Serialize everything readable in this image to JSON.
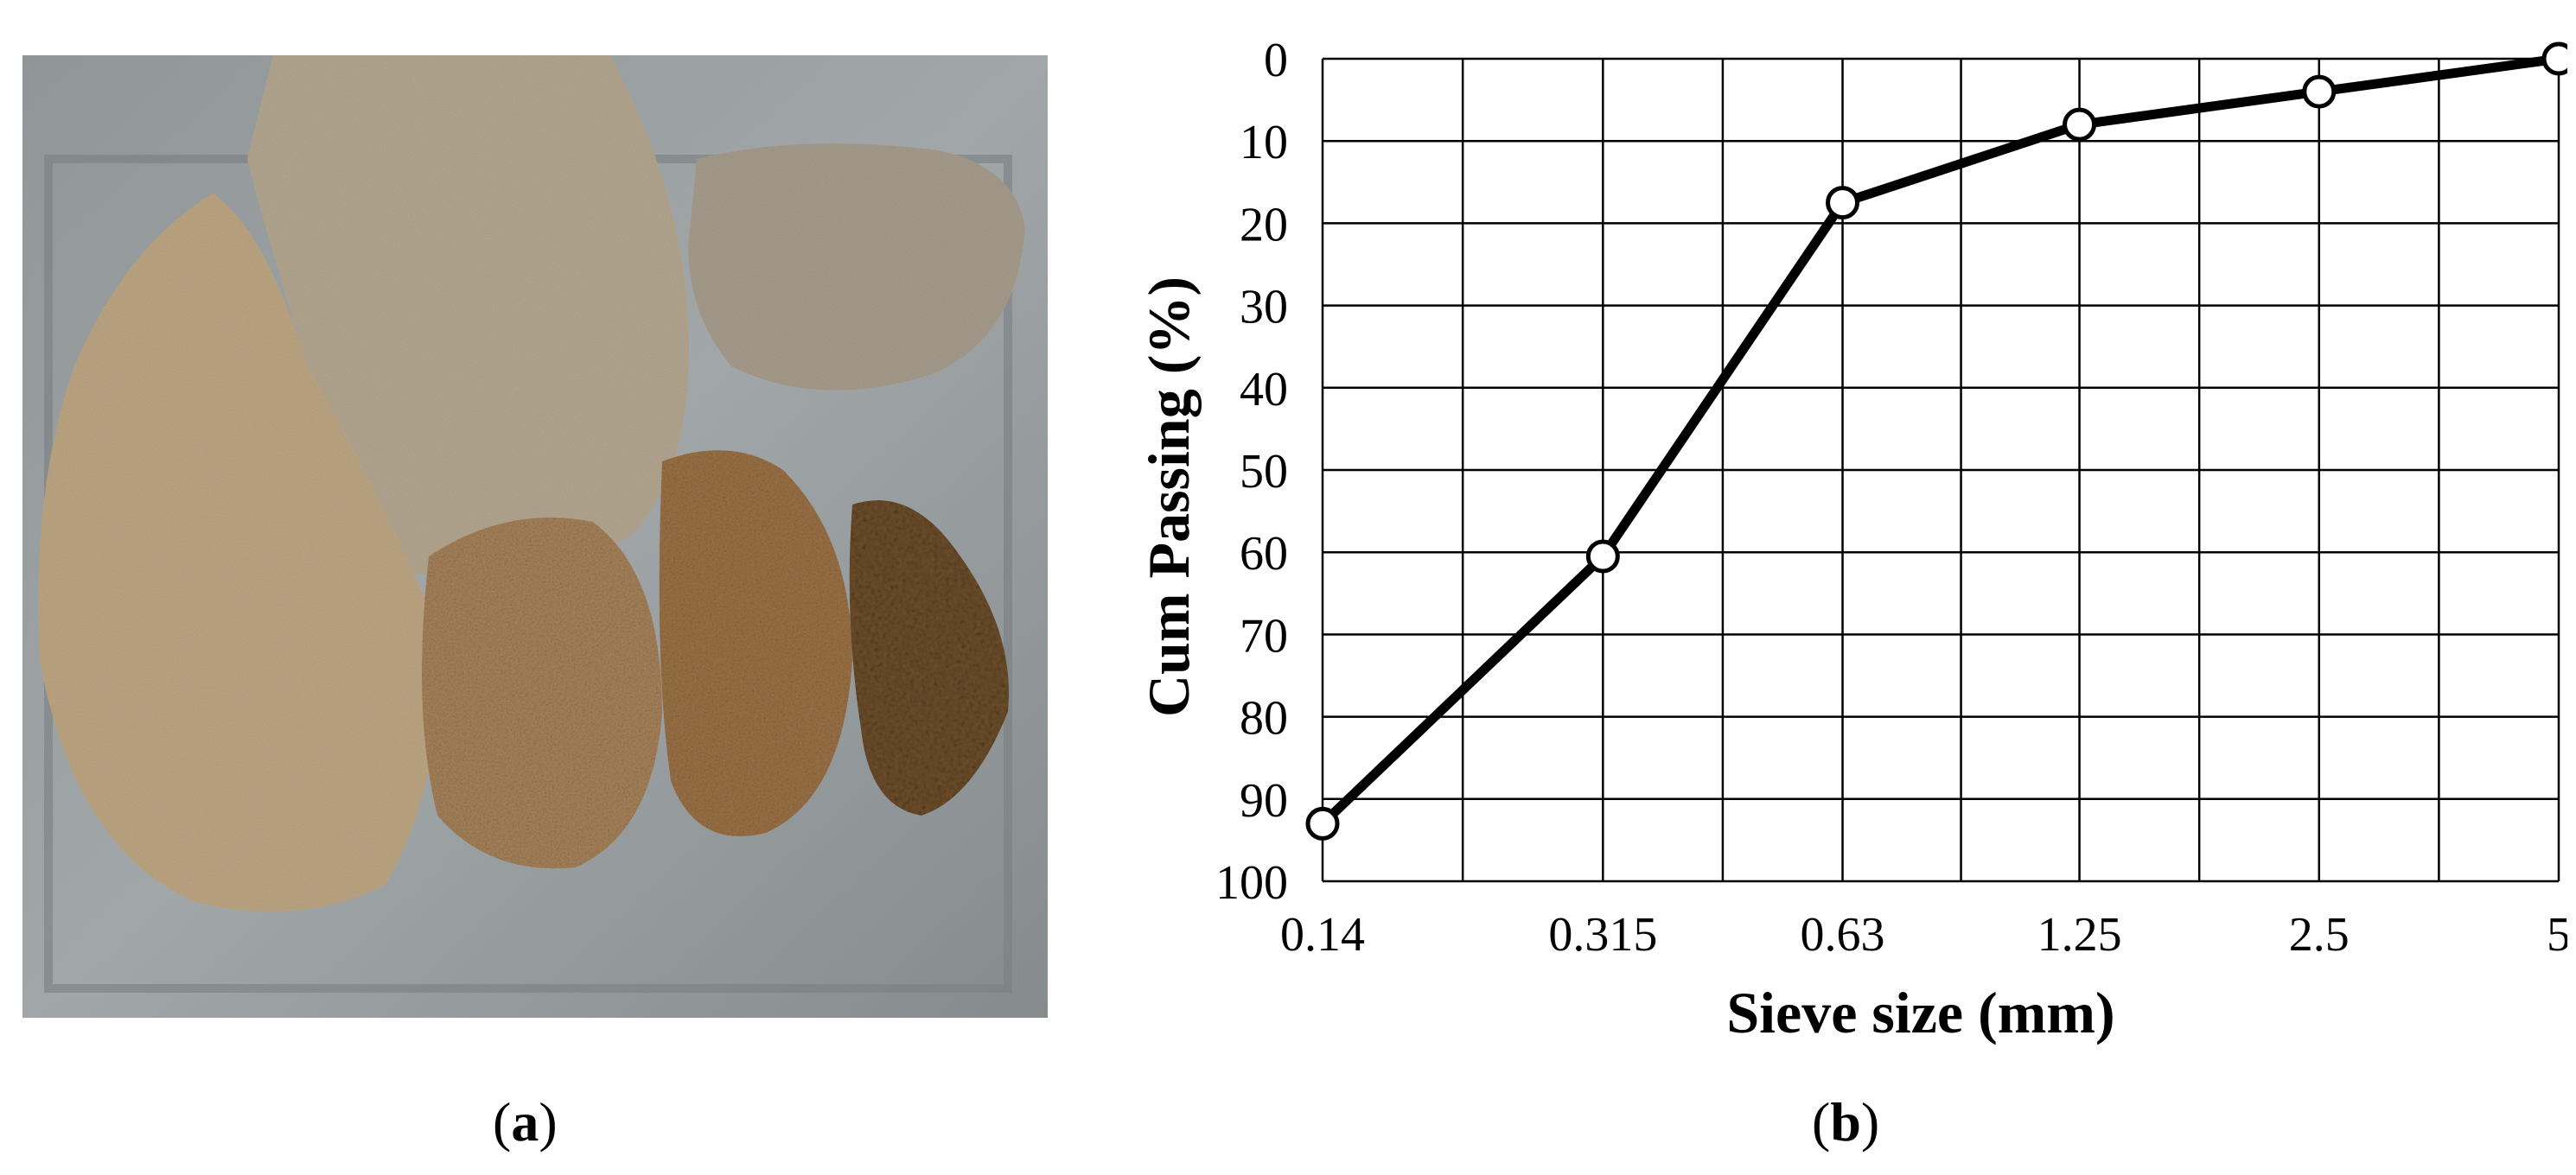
{
  "figure": {
    "panel_a_label": "a",
    "panel_b_label": "b"
  },
  "photo": {
    "description_name": "sand-fractions-in-tray-photo"
  },
  "chart_data": {
    "type": "line",
    "title": "",
    "xlabel": "Sieve size (mm)",
    "ylabel": "Cum Passing (%)",
    "x_scale": "log",
    "x_ticks": [
      "0.14",
      "0.315",
      "0.63",
      "1.25",
      "2.5",
      "5"
    ],
    "y_ticks": [
      "0",
      "10",
      "20",
      "30",
      "40",
      "50",
      "60",
      "70",
      "80",
      "90",
      "100"
    ],
    "ylim": [
      100,
      0
    ],
    "y_inverted": true,
    "grid": true,
    "legend": "none",
    "series": [
      {
        "x": [
          0.14,
          0.315,
          0.63,
          1.25,
          2.5,
          5
        ],
        "y": [
          93,
          60.5,
          17.5,
          8,
          4,
          0
        ]
      }
    ],
    "colors": {
      "line": "#000000",
      "marker_fill": "#ffffff",
      "grid": "#000000"
    }
  }
}
